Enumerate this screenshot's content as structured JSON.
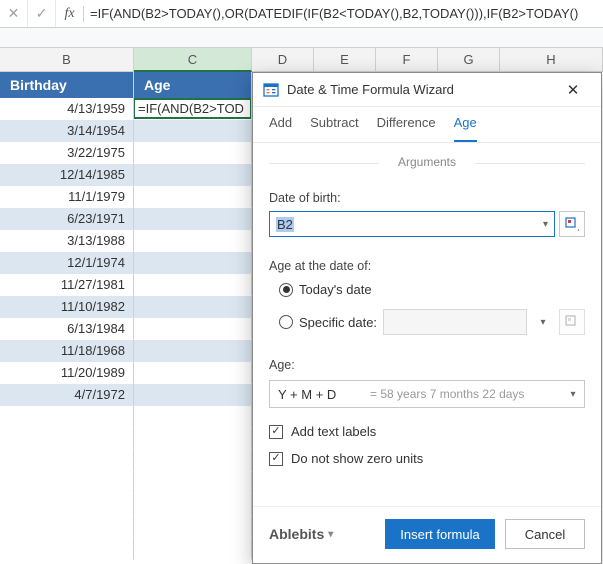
{
  "formula_bar": {
    "formula": "=IF(AND(B2>TODAY(),OR(DATEDIF(IF(B2<TODAY(),B2,TODAY())),IF(B2>TODAY()"
  },
  "columns": {
    "B": "B",
    "C": "C",
    "D": "D",
    "E": "E",
    "F": "F",
    "G": "G",
    "H": "H"
  },
  "headers": {
    "birthday": "Birthday",
    "age": "Age"
  },
  "active_cell_text": "=IF(AND(B2>TOD",
  "rows": [
    {
      "b": "4/13/1959",
      "band": false
    },
    {
      "b": "3/14/1954",
      "band": true
    },
    {
      "b": "3/22/1975",
      "band": false
    },
    {
      "b": "12/14/1985",
      "band": true
    },
    {
      "b": "11/1/1979",
      "band": false
    },
    {
      "b": "6/23/1971",
      "band": true
    },
    {
      "b": "3/13/1988",
      "band": false
    },
    {
      "b": "12/1/1974",
      "band": true
    },
    {
      "b": "11/27/1981",
      "band": false
    },
    {
      "b": "11/10/1982",
      "band": true
    },
    {
      "b": "6/13/1984",
      "band": false
    },
    {
      "b": "11/18/1968",
      "band": true
    },
    {
      "b": "11/20/1989",
      "band": false
    },
    {
      "b": "4/7/1972",
      "band": true
    }
  ],
  "empty_rows": 7,
  "dialog": {
    "title": "Date & Time Formula Wizard",
    "tabs": {
      "add": "Add",
      "subtract": "Subtract",
      "difference": "Difference",
      "age": "Age"
    },
    "arguments_label": "Arguments",
    "dob_label": "Date of birth:",
    "dob_value": "B2",
    "age_at_label": "Age at the date of:",
    "today_label": "Today's date",
    "specific_label": "Specific date:",
    "age_label": "Age:",
    "age_format": "Y + M + D",
    "age_preview": "= 58 years 7 months 22 days",
    "chk1": "Add text labels",
    "chk2": "Do not show zero units",
    "brand": "Ablebits",
    "insert_btn": "Insert formula",
    "cancel_btn": "Cancel"
  },
  "colors": {
    "header_bg": "#3a6fb0",
    "band_bg": "#dce6f1",
    "accent": "#1a73c7",
    "excel_sel": "#217346"
  }
}
